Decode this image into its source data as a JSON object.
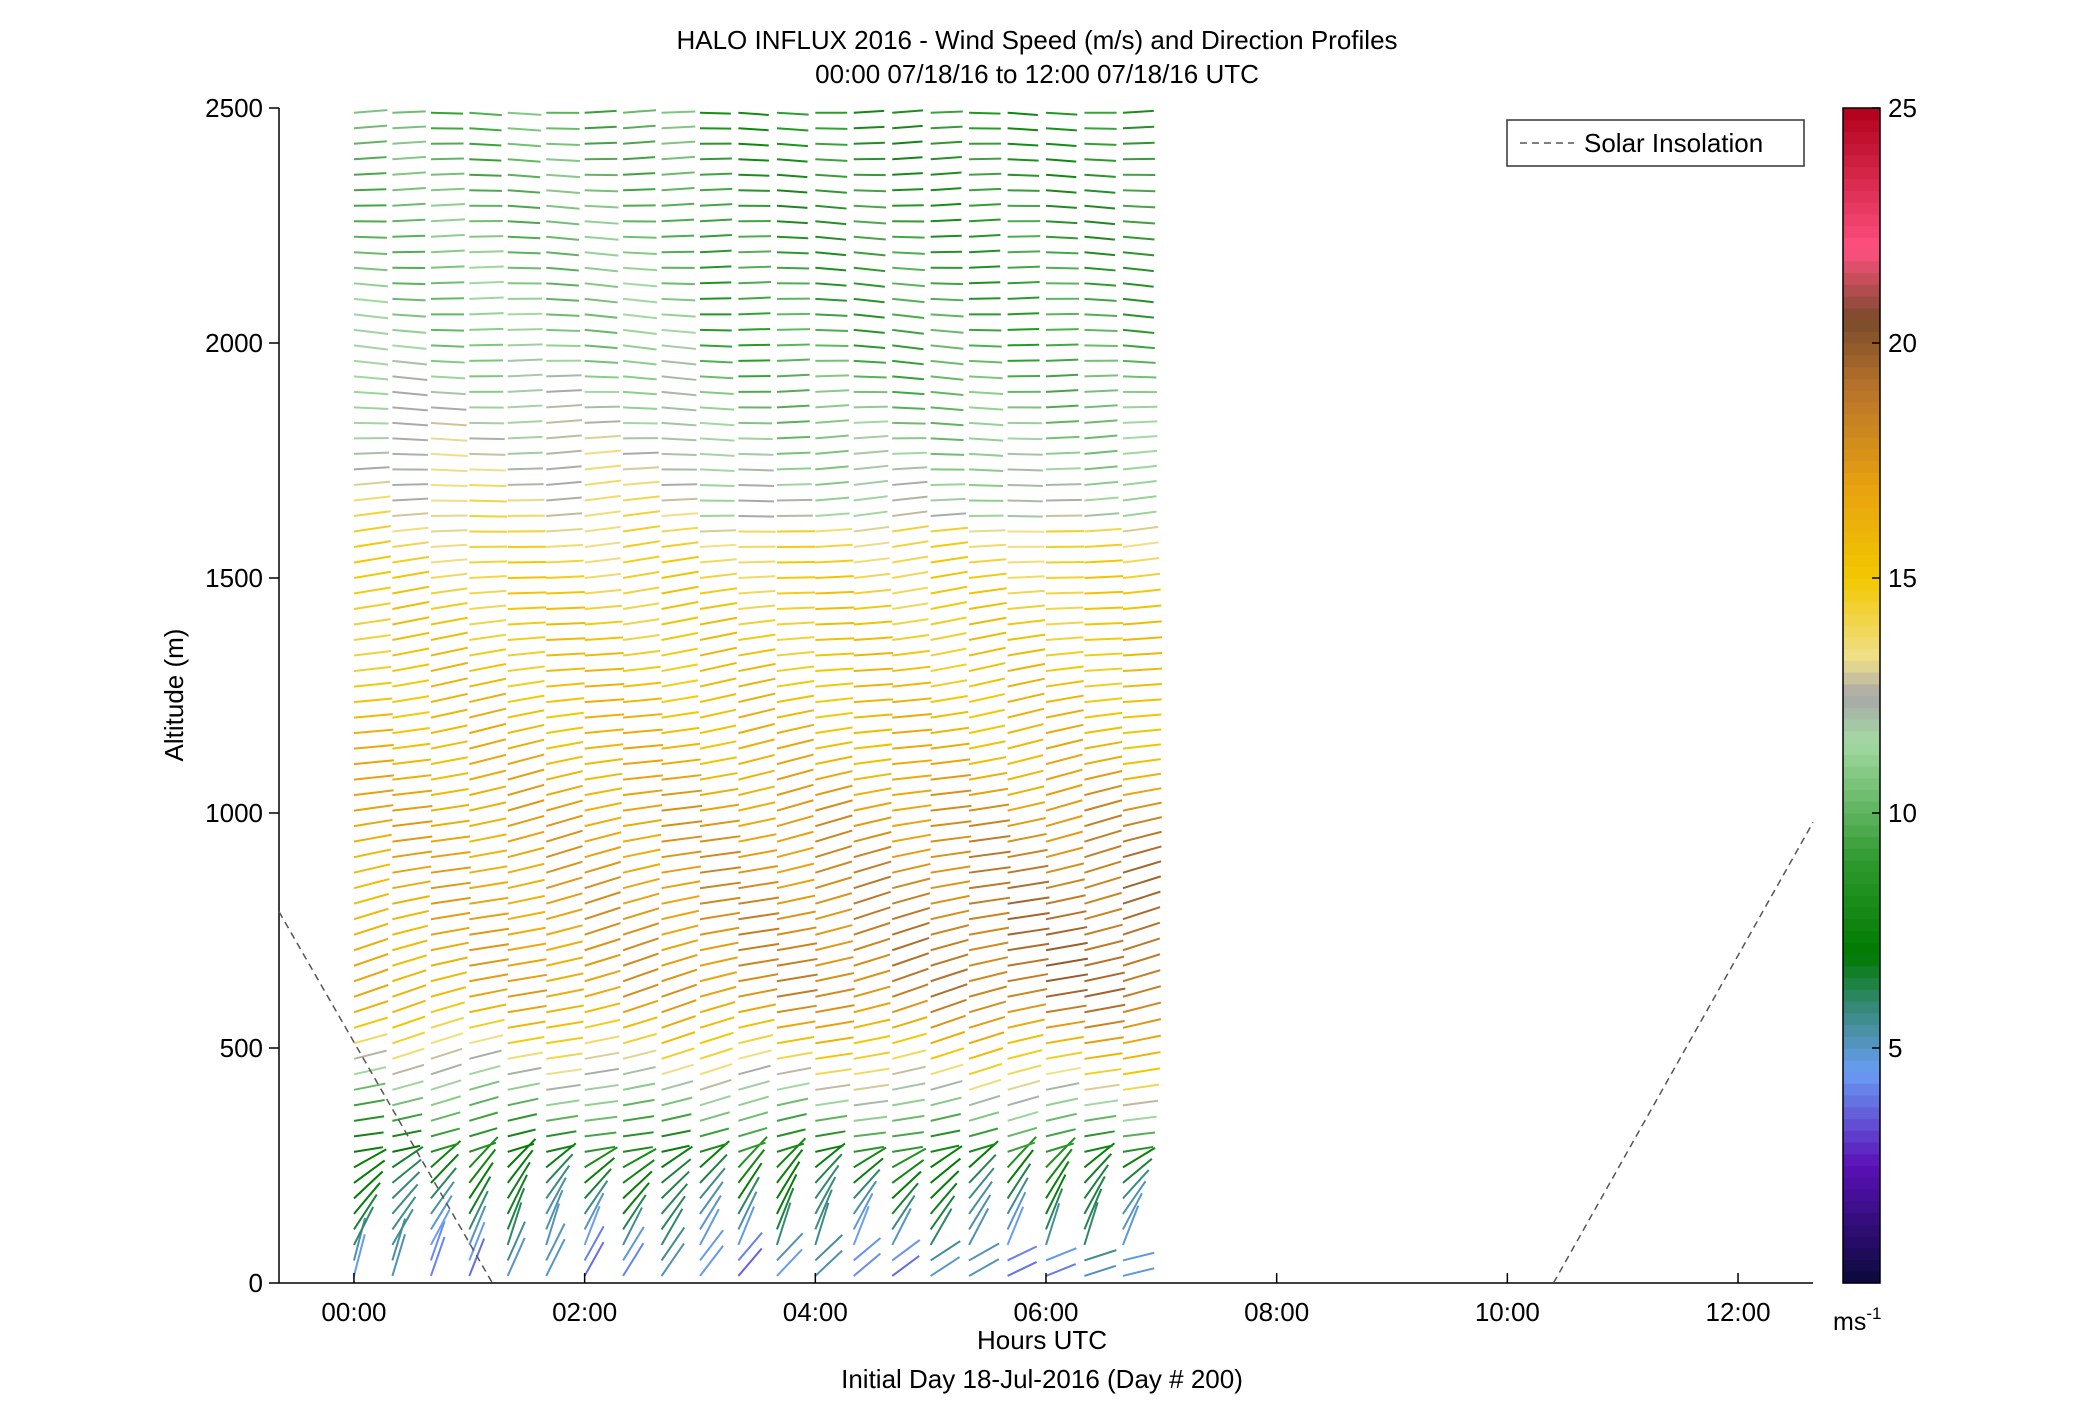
{
  "title_line1": "HALO INFLUX 2016 - Wind Speed (m/s) and Direction Profiles",
  "title_line2": "00:00 07/18/16 to 12:00 07/18/16  UTC",
  "xlabel": "Hours UTC",
  "xlabel2": "Initial Day 18-Jul-2016 (Day # 200)",
  "ylabel": "Altitude (m)",
  "legend_label": "Solar Insolation",
  "colorbar_unit_base": "ms",
  "colorbar_unit_exp": "-1",
  "colors": {
    "solar_line": "#555555",
    "axis": "#000000",
    "colormap_stops": [
      {
        "v": 0,
        "c": "#0a0a3a"
      },
      {
        "v": 2.5,
        "c": "#5a10b8"
      },
      {
        "v": 4.5,
        "c": "#6a9ef5"
      },
      {
        "v": 5.8,
        "c": "#3a8a80"
      },
      {
        "v": 7.0,
        "c": "#007a00"
      },
      {
        "v": 9.0,
        "c": "#2f9a2f"
      },
      {
        "v": 11.5,
        "c": "#a3d9a3"
      },
      {
        "v": 12.5,
        "c": "#a8a8a8"
      },
      {
        "v": 13.3,
        "c": "#f0e08a"
      },
      {
        "v": 15.0,
        "c": "#f2c800"
      },
      {
        "v": 17.0,
        "c": "#e8a010"
      },
      {
        "v": 19.0,
        "c": "#b8742a"
      },
      {
        "v": 20.5,
        "c": "#7a4a2a"
      },
      {
        "v": 22.0,
        "c": "#ff5080"
      },
      {
        "v": 25.0,
        "c": "#b0001a"
      }
    ]
  },
  "chart_data": {
    "type": "vector-field",
    "title": "HALO INFLUX 2016 - Wind Speed (m/s) and Direction Profiles",
    "xlabel": "Hours UTC",
    "ylabel": "Altitude (m)",
    "x_ticks": [
      "00:00",
      "02:00",
      "04:00",
      "06:00",
      "08:00",
      "10:00",
      "12:00"
    ],
    "x_tick_values": [
      0,
      2,
      4,
      6,
      8,
      10,
      12
    ],
    "xlim": [
      -0.65,
      12.65
    ],
    "y_ticks": [
      "0",
      "500",
      "1000",
      "1500",
      "2000",
      "2500"
    ],
    "y_tick_values": [
      0,
      500,
      1000,
      1500,
      2000,
      2500
    ],
    "ylim": [
      0,
      2500
    ],
    "colorbar": {
      "ticks": [
        "5",
        "10",
        "15",
        "20",
        "25"
      ],
      "tick_values": [
        5,
        10,
        15,
        20,
        25
      ],
      "range": [
        0,
        25
      ]
    },
    "profile_times_hours": [
      0.0,
      0.333,
      0.667,
      1.0,
      1.333,
      1.667,
      2.0,
      2.333,
      2.667,
      3.0,
      3.333,
      3.667,
      4.0,
      4.333,
      4.667,
      5.0,
      5.333,
      5.667,
      6.0,
      6.333,
      6.667
    ],
    "altitude_range_m": [
      0,
      2500
    ],
    "range_gate_m": 33,
    "approx_speed_by_layer_ms": [
      {
        "altitude_m": 20,
        "speed": 4.5,
        "direction_deg": 200
      },
      {
        "altitude_m": 300,
        "speed": 8.0,
        "direction_deg": 250
      },
      {
        "altitude_m": 600,
        "speed": 16.0,
        "direction_deg": 245
      },
      {
        "altitude_m": 1000,
        "speed": 16.5,
        "direction_deg": 250
      },
      {
        "altitude_m": 1500,
        "speed": 14.5,
        "direction_deg": 260
      },
      {
        "altitude_m": 2000,
        "speed": 11.0,
        "direction_deg": 275
      },
      {
        "altitude_m": 2400,
        "speed": 10.0,
        "direction_deg": 270
      }
    ],
    "solar_insolation": {
      "name": "Solar Insolation",
      "segments": [
        [
          {
            "x": -0.65,
            "y": 790
          },
          {
            "x": 1.2,
            "y": 0
          }
        ],
        [
          {
            "x": 10.4,
            "y": 0
          },
          {
            "x": 12.65,
            "y": 980
          }
        ]
      ]
    }
  }
}
